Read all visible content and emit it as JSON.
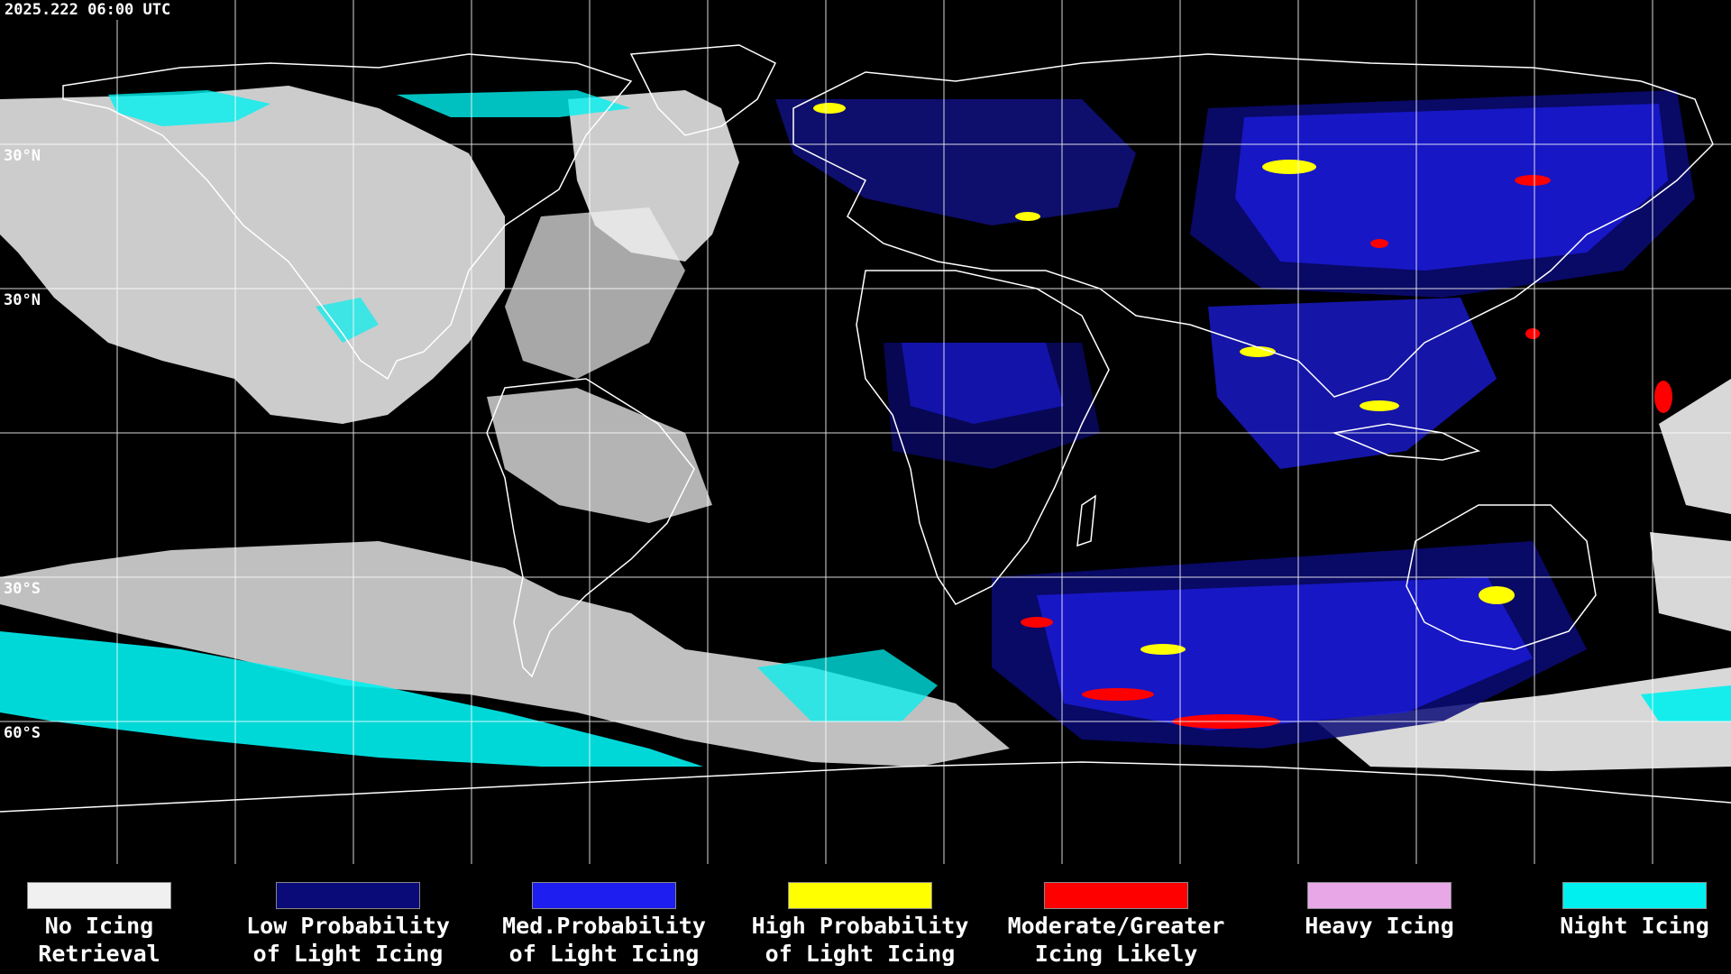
{
  "timestamp": "2025.222 06:00 UTC",
  "lat_labels": [
    "30°N",
    "30°N",
    "30°S",
    "60°S"
  ],
  "colors": {
    "no_icing": "#f0f0f0",
    "low": "#0a0a78",
    "med": "#1e1ef0",
    "high": "#ffff00",
    "moderate": "#ff0000",
    "heavy": "#e8a8e8",
    "night": "#00f0f0",
    "grid": "#ffffff",
    "background": "#000000"
  },
  "legend": [
    {
      "line1": "No Icing",
      "line2": "Retrieval",
      "color": "#f0f0f0"
    },
    {
      "line1": "Low Probability",
      "line2": "of Light Icing",
      "color": "#0a0a78"
    },
    {
      "line1": "Med.Probability",
      "line2": "of Light Icing",
      "color": "#1e1ef0"
    },
    {
      "line1": "High Probability",
      "line2": "of Light Icing",
      "color": "#ffff00"
    },
    {
      "line1": "Moderate/Greater",
      "line2": "Icing Likely",
      "color": "#ff0000"
    },
    {
      "line1": "Heavy Icing",
      "line2": "",
      "color": "#e8a8e8"
    },
    {
      "line1": "Night Icing",
      "line2": "",
      "color": "#00f0f0"
    }
  ]
}
